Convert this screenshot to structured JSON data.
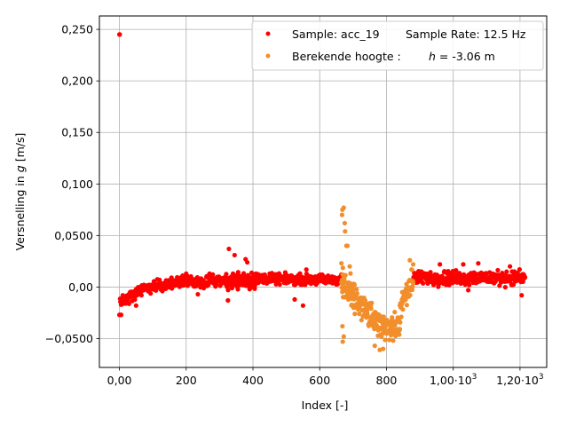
{
  "chart_data": {
    "type": "scatter",
    "xlabel": "Index [-]",
    "ylabel_parts": [
      "Versnelling in ",
      "g",
      " [m/s]"
    ],
    "xlim": [
      -60,
      1280
    ],
    "ylim": [
      -0.078,
      0.263
    ],
    "grid": true,
    "legend_position": "top-right",
    "x_ticks": [
      {
        "value": 0,
        "label": "0,00"
      },
      {
        "value": 200,
        "label": "200"
      },
      {
        "value": 400,
        "label": "400"
      },
      {
        "value": 600,
        "label": "600"
      },
      {
        "value": 800,
        "label": "800"
      },
      {
        "value": 1000,
        "label": "1,00·10",
        "sup": "3"
      },
      {
        "value": 1200,
        "label": "1,20·10",
        "sup": "3"
      }
    ],
    "y_ticks": [
      {
        "value": -0.05,
        "label": "−0,0500"
      },
      {
        "value": 0.0,
        "label": "0,00"
      },
      {
        "value": 0.05,
        "label": "0,0500"
      },
      {
        "value": 0.1,
        "label": "0,100"
      },
      {
        "value": 0.15,
        "label": "0,150"
      },
      {
        "value": 0.2,
        "label": "0,200"
      },
      {
        "value": 0.25,
        "label": "0,250"
      }
    ],
    "series": [
      {
        "name": "Sample: acc_19",
        "legend_extra": "Sample Rate: 12.5 Hz",
        "color": "#ff0000",
        "segments": [
          {
            "x": [
              0,
              1
            ],
            "y": [
              0.245,
              0.245
            ]
          },
          {
            "x": [
              0,
              5
            ],
            "y": [
              -0.027,
              -0.027
            ]
          },
          {
            "x": [
              2,
              60
            ],
            "y": [
              -0.015,
              -0.003
            ],
            "jitter": 0.004,
            "n": 60
          },
          {
            "x": [
              60,
              160
            ],
            "y": [
              -0.003,
              0.004
            ],
            "jitter": 0.004,
            "n": 100
          },
          {
            "x": [
              160,
              320
            ],
            "y": [
              0.004,
              0.007
            ],
            "jitter": 0.004,
            "n": 160
          },
          {
            "x": [
              320,
              420
            ],
            "y": [
              0.006,
              0.008
            ],
            "jitter": 0.006,
            "n": 110
          },
          {
            "x": [
              420,
              665
            ],
            "y": [
              0.008,
              0.007
            ],
            "jitter": 0.0035,
            "n": 240
          },
          {
            "x": [
              880,
              1215
            ],
            "y": [
              0.009,
              0.009
            ],
            "jitter": 0.005,
            "n": 330
          }
        ],
        "outliers": [
          {
            "x": 328,
            "y": 0.037
          },
          {
            "x": 345,
            "y": 0.031
          },
          {
            "x": 378,
            "y": 0.027
          },
          {
            "x": 383,
            "y": 0.024
          },
          {
            "x": 325,
            "y": -0.013
          },
          {
            "x": 390,
            "y": -0.002
          },
          {
            "x": 525,
            "y": -0.012
          },
          {
            "x": 550,
            "y": -0.018
          },
          {
            "x": 560,
            "y": 0.017
          },
          {
            "x": 960,
            "y": 0.022
          },
          {
            "x": 1030,
            "y": 0.022
          },
          {
            "x": 1075,
            "y": 0.023
          },
          {
            "x": 1170,
            "y": 0.02
          },
          {
            "x": 1205,
            "y": -0.008
          },
          {
            "x": 1045,
            "y": -0.003
          },
          {
            "x": 120,
            "y": 0.007
          },
          {
            "x": 50,
            "y": -0.018
          },
          {
            "x": 10,
            "y": -0.008
          },
          {
            "x": 8,
            "y": -0.011
          },
          {
            "x": 200,
            "y": 0.013
          },
          {
            "x": 235,
            "y": -0.007
          },
          {
            "x": 270,
            "y": 0.013
          },
          {
            "x": 450,
            "y": 0.013
          }
        ]
      },
      {
        "name": "Berekende hoogte :",
        "legend_extra_parts": [
          "h",
          " = -3.06 m"
        ],
        "color": "#f28e2b",
        "segments": [
          {
            "x": [
              665,
              700
            ],
            "y": [
              0.005,
              -0.012
            ],
            "jitter": 0.012,
            "n": 50
          },
          {
            "x": [
              700,
              760
            ],
            "y": [
              -0.01,
              -0.03
            ],
            "jitter": 0.01,
            "n": 70
          },
          {
            "x": [
              760,
              840
            ],
            "y": [
              -0.035,
              -0.04
            ],
            "jitter": 0.009,
            "n": 90
          },
          {
            "x": [
              840,
              880
            ],
            "y": [
              -0.02,
              0.005
            ],
            "jitter": 0.009,
            "n": 45
          }
        ],
        "outliers": [
          {
            "x": 668,
            "y": 0.075
          },
          {
            "x": 672,
            "y": 0.077
          },
          {
            "x": 667,
            "y": 0.07
          },
          {
            "x": 675,
            "y": 0.062
          },
          {
            "x": 676,
            "y": 0.054
          },
          {
            "x": 680,
            "y": 0.04
          },
          {
            "x": 683,
            "y": 0.04
          },
          {
            "x": 665,
            "y": 0.023
          },
          {
            "x": 668,
            "y": -0.038
          },
          {
            "x": 669,
            "y": -0.053
          },
          {
            "x": 672,
            "y": -0.048
          },
          {
            "x": 870,
            "y": 0.026
          },
          {
            "x": 880,
            "y": 0.022
          },
          {
            "x": 875,
            "y": 0.017
          },
          {
            "x": 690,
            "y": 0.02
          },
          {
            "x": 780,
            "y": -0.061
          },
          {
            "x": 790,
            "y": -0.06
          },
          {
            "x": 765,
            "y": -0.057
          },
          {
            "x": 820,
            "y": -0.052
          }
        ]
      }
    ]
  }
}
